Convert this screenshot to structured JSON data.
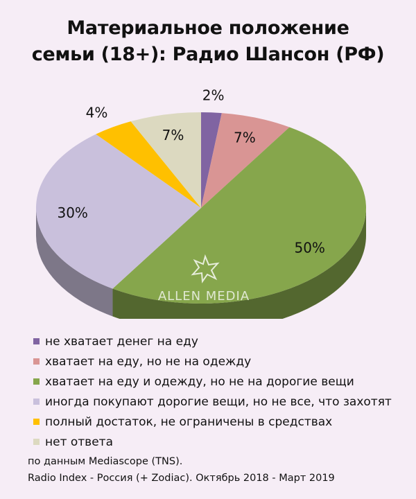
{
  "title_line1": "Материальное положение",
  "title_line2": "семьи (18+): Радио Шансон (РФ)",
  "watermark": "ALLEN MEDIA",
  "chart_data": {
    "type": "pie",
    "slices": [
      {
        "label": "не хватает денег на еду",
        "value": 2,
        "display": "2%",
        "color": "#8064a2"
      },
      {
        "label": "хватает на еду, но не на одежду",
        "value": 7,
        "display": "7%",
        "color": "#d99594"
      },
      {
        "label": "хватает на еду и одежду, но не на дорогие вещи",
        "value": 50,
        "display": "50%",
        "color": "#86a64c"
      },
      {
        "label": "иногда покупают дорогие вещи, но не все, что захотят",
        "value": 30,
        "display": "30%",
        "color": "#c9c0dc"
      },
      {
        "label": "полный достаток, не ограничены в средствах",
        "value": 4,
        "display": "4%",
        "color": "#ffc000"
      },
      {
        "label": "нет ответа",
        "value": 7,
        "display": "7%",
        "color": "#dcd9c0"
      }
    ],
    "legend_position": "bottom"
  },
  "source_line1": "по данным Mediascope (TNS).",
  "source_line2": "Radio Index - Россия (+ Zodiac). Октябрь 2018 - Март 2019"
}
